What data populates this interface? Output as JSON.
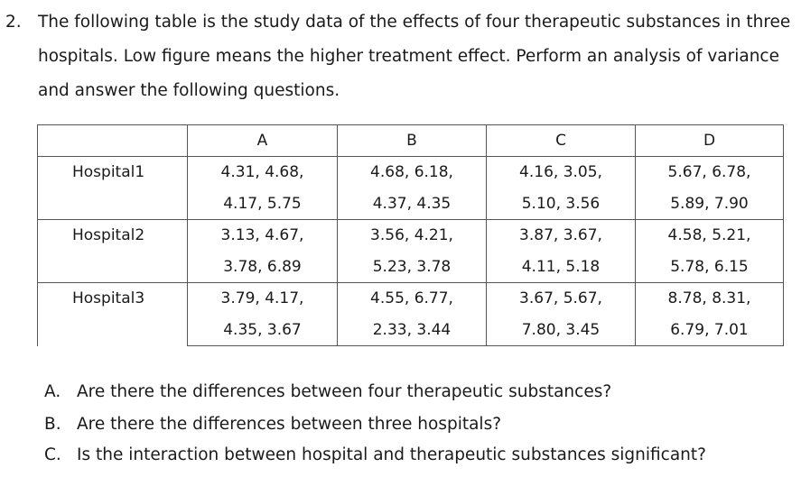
{
  "question": {
    "number": "2.",
    "lines": [
      "The following table is the study data of the effects of four therapeutic substances in three",
      "hospitals. Low figure means the higher treatment effect. Perform an analysis of variance",
      "and answer the following questions."
    ]
  },
  "table": {
    "columns": [
      "",
      "A",
      "B",
      "C",
      "D"
    ],
    "rows": [
      {
        "hospital": "Hospital1",
        "line1": [
          "4.31, 4.68,",
          "4.68, 6.18,",
          "4.16, 3.05,",
          "5.67, 6.78,"
        ],
        "line2": [
          "4.17, 5.75",
          "4.37, 4.35",
          "5.10, 3.56",
          "5.89, 7.90"
        ]
      },
      {
        "hospital": "Hospital2",
        "line1": [
          "3.13, 4.67,",
          "3.56, 4.21,",
          "3.87, 3.67,",
          "4.58, 5.21,"
        ],
        "line2": [
          "3.78, 6.89",
          "5.23, 3.78",
          "4.11, 5.18",
          "5.78, 6.15"
        ]
      },
      {
        "hospital": "Hospital3",
        "line1": [
          "3.79, 4.17,",
          "4.55, 6.77,",
          "3.67, 5.67,",
          "8.78, 8.31,"
        ],
        "line2": [
          "4.35, 3.67",
          "2.33, 3.44",
          "7.80, 3.45",
          "6.79, 7.01"
        ]
      }
    ]
  },
  "subquestions": [
    {
      "label": "A.",
      "text": "Are there the differences between four therapeutic substances?"
    },
    {
      "label": "B.",
      "text": "Are there the differences between three hospitals?"
    },
    {
      "label": "C.",
      "text": "Is the interaction between hospital and therapeutic substances significant?"
    }
  ]
}
